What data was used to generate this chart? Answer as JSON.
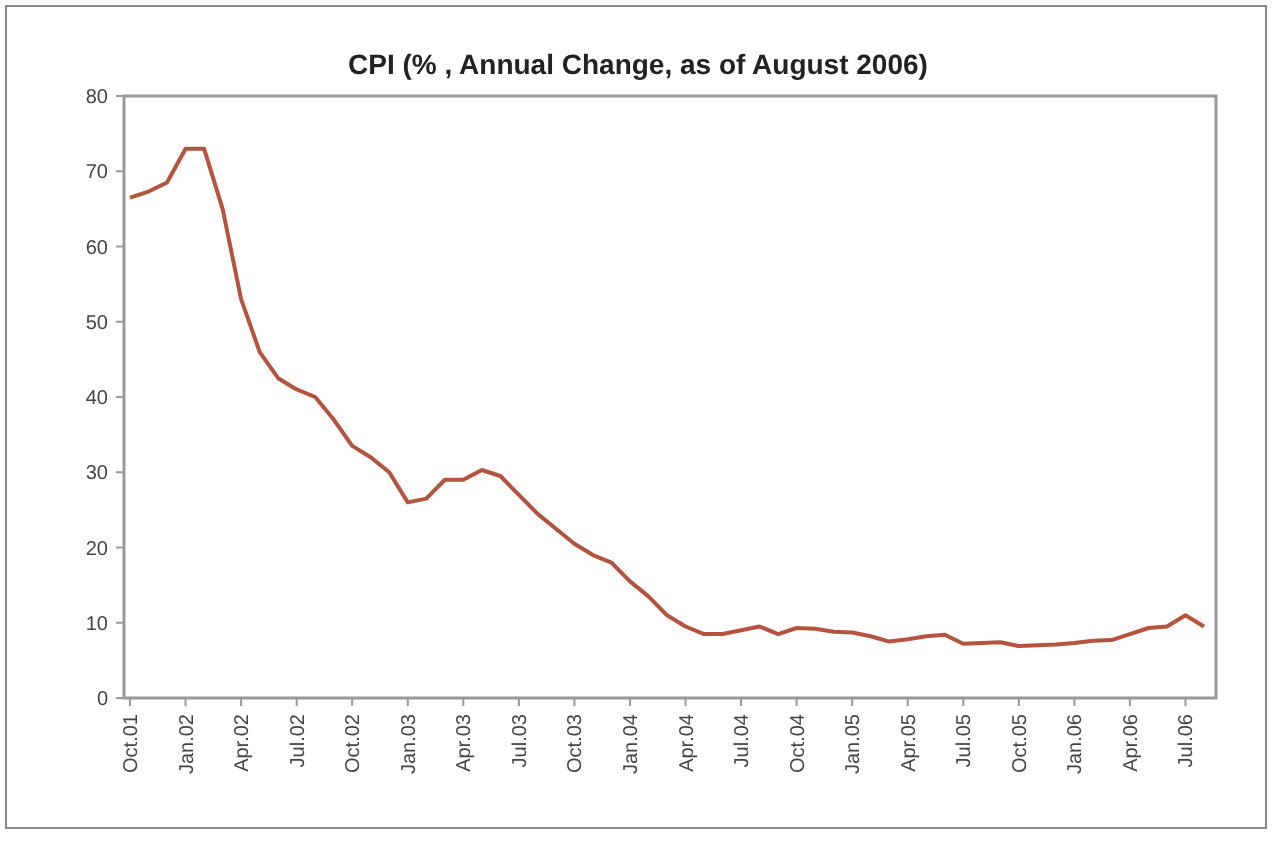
{
  "chart_data": {
    "type": "line",
    "title": "CPI (% ,  Annual Change, as of August 2006)",
    "categories": [
      "Oct.01",
      null,
      null,
      "Jan.02",
      null,
      null,
      "Apr.02",
      null,
      null,
      "Jul.02",
      null,
      null,
      "Oct.02",
      null,
      null,
      "Jan.03",
      null,
      null,
      "Apr.03",
      null,
      null,
      "Jul.03",
      null,
      null,
      "Oct.03",
      null,
      null,
      "Jan.04",
      null,
      null,
      "Apr.04",
      null,
      null,
      "Jul.04",
      null,
      null,
      "Oct.04",
      null,
      null,
      "Jan.05",
      null,
      null,
      "Apr.05",
      null,
      null,
      "Jul.05",
      null,
      null,
      "Oct.05",
      null,
      null,
      "Jan.06",
      null,
      null,
      "Apr.06",
      null,
      null,
      "Jul.06",
      null
    ],
    "series": [
      {
        "color": "#b5533c",
        "values": [
          66.5,
          67.3,
          68.5,
          73,
          73,
          65,
          53,
          46,
          42.5,
          41,
          40,
          37,
          33.5,
          32,
          30,
          26,
          26.5,
          29,
          29,
          30.3,
          29.5,
          27,
          24.5,
          22.5,
          20.5,
          19,
          18,
          15.5,
          13.5,
          11,
          9.5,
          8.5,
          8.5,
          9,
          9.5,
          8.5,
          9.3,
          9.2,
          8.8,
          8.7,
          8.2,
          7.5,
          7.8,
          8.2,
          8.4,
          7.2,
          7.3,
          7.4,
          6.9,
          7,
          7.1,
          7.3,
          7.6,
          7.7,
          8.5,
          9.3,
          9.5,
          11,
          9.5
        ]
      }
    ],
    "ylim": [
      0,
      80
    ],
    "yticks": [
      0,
      10,
      20,
      30,
      40,
      50,
      60,
      70,
      80
    ],
    "grid": false,
    "marker": "none",
    "line_style": "solid"
  }
}
